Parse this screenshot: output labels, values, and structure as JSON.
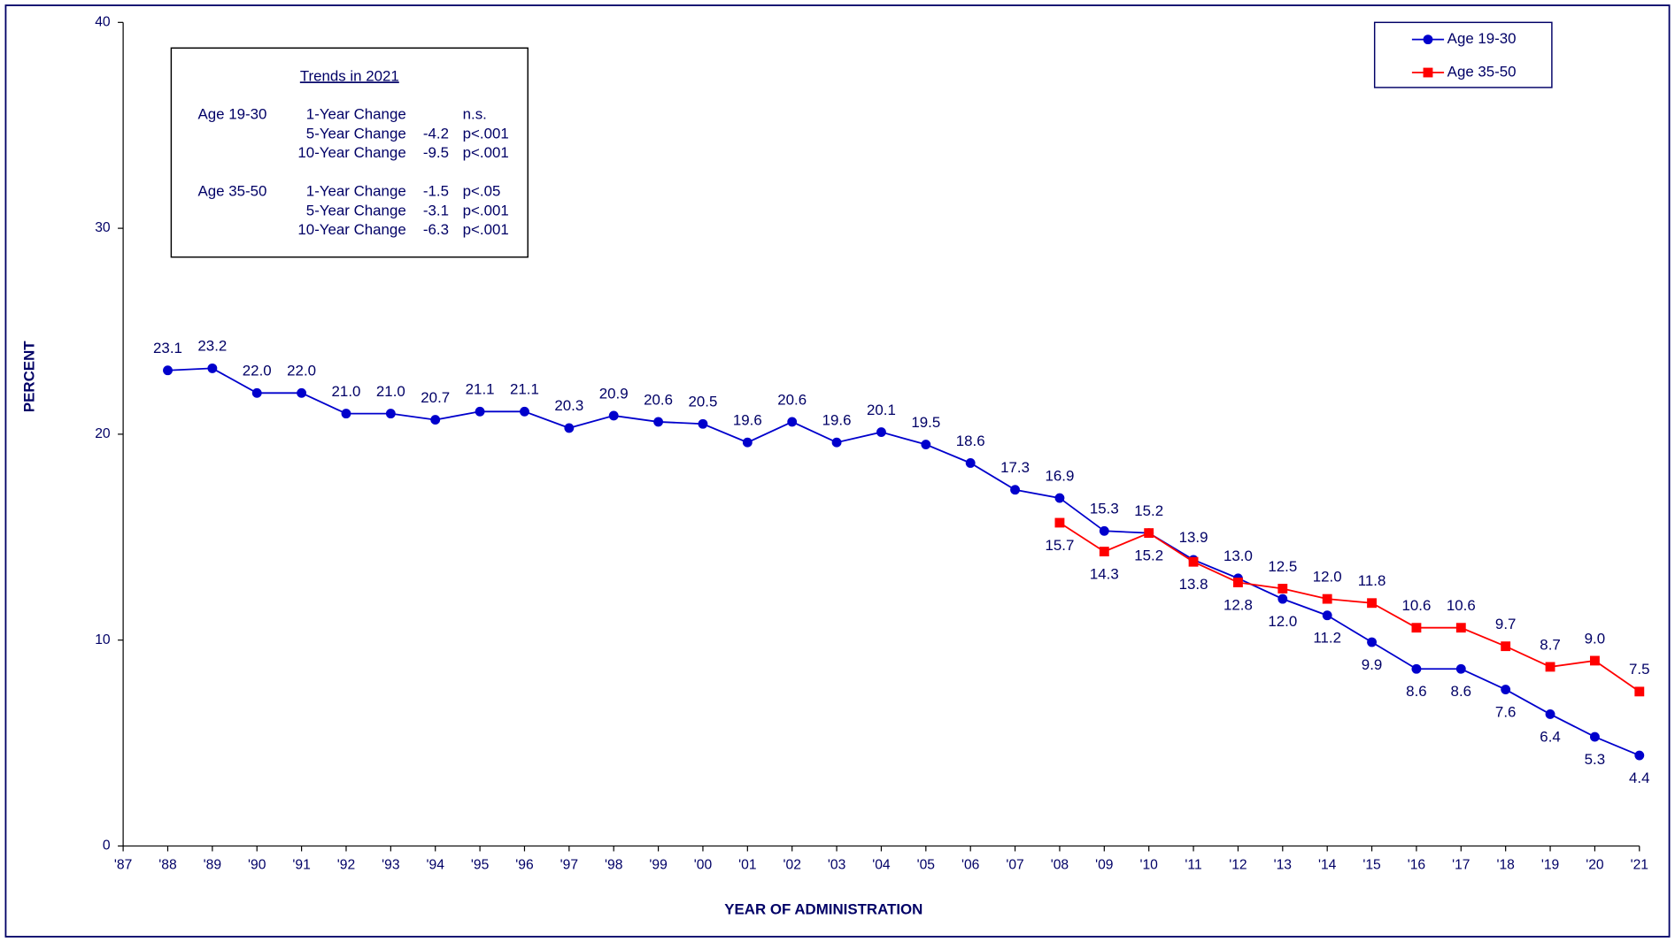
{
  "chart_data": {
    "type": "line",
    "x_label": "YEAR OF ADMINISTRATION",
    "y_label": "PERCENT",
    "categories": [
      "'87",
      "'88",
      "'89",
      "'90",
      "'91",
      "'92",
      "'93",
      "'94",
      "'95",
      "'96",
      "'97",
      "'98",
      "'99",
      "'00",
      "'01",
      "'02",
      "'03",
      "'04",
      "'05",
      "'06",
      "'07",
      "'08",
      "'09",
      "'10",
      "'11",
      "'12",
      "'13",
      "'14",
      "'15",
      "'16",
      "'17",
      "'18",
      "'19",
      "'20",
      "'21"
    ],
    "series": [
      {
        "name": "Age 19-30",
        "color": "#0000cc",
        "marker": "circle",
        "values": [
          null,
          23.1,
          23.2,
          22.0,
          22.0,
          21.0,
          21.0,
          20.7,
          21.1,
          21.1,
          20.3,
          20.9,
          20.6,
          20.5,
          19.6,
          20.6,
          19.6,
          20.1,
          19.5,
          18.6,
          17.3,
          16.9,
          15.3,
          15.2,
          13.9,
          13.0,
          12.0,
          11.2,
          9.9,
          8.6,
          8.6,
          7.6,
          6.4,
          5.3,
          4.4
        ],
        "value_labels": [
          null,
          "23.1",
          "23.2",
          "22.0",
          "22.0",
          "21.0",
          "21.0",
          "20.7",
          "21.1",
          "21.1",
          "20.3",
          "20.9",
          "20.6",
          "20.5",
          "19.6",
          "20.6",
          "19.6",
          "20.1",
          "19.5",
          "18.6",
          "17.3",
          "16.9",
          "15.3",
          "15.2",
          "13.9",
          "13.0",
          "12.0",
          "11.2",
          "9.9",
          "8.6",
          "8.6",
          "7.6",
          "6.4",
          "5.3",
          "4.4"
        ]
      },
      {
        "name": "Age 35-50",
        "color": "#ff0000",
        "marker": "square",
        "values": [
          null,
          null,
          null,
          null,
          null,
          null,
          null,
          null,
          null,
          null,
          null,
          null,
          null,
          null,
          null,
          null,
          null,
          null,
          null,
          null,
          null,
          15.7,
          14.3,
          15.2,
          13.8,
          12.8,
          12.5,
          12.0,
          11.8,
          10.6,
          10.6,
          9.7,
          8.7,
          9.0,
          7.5
        ],
        "value_labels": [
          null,
          null,
          null,
          null,
          null,
          null,
          null,
          null,
          null,
          null,
          null,
          null,
          null,
          null,
          null,
          null,
          null,
          null,
          null,
          null,
          null,
          "15.7",
          "14.3",
          "15.2",
          "13.8",
          "12.8",
          "12.5",
          "12.0",
          "11.8",
          "10.6",
          "10.6",
          "9.7",
          "8.7",
          "9.0",
          "7.5"
        ]
      }
    ],
    "ylim": [
      0,
      40
    ],
    "yticks": [
      0,
      10,
      20,
      30,
      40
    ],
    "grid": false,
    "legend": "upper right",
    "trends": {
      "title": "Trends in 2021",
      "groups": [
        {
          "label": "Age 19-30",
          "rows": [
            {
              "label": "1-Year Change",
              "significance": "n.s."
            },
            {
              "label": "5-Year Change",
              "change": -4.2,
              "significance": "p<.001"
            },
            {
              "label": "10-Year Change",
              "change": -9.5,
              "significance": "p<.001"
            }
          ]
        },
        {
          "label": "Age 35-50",
          "rows": [
            {
              "label": "1-Year Change",
              "change": -1.5,
              "significance": "p<.05"
            },
            {
              "label": "5-Year Change",
              "change": -3.1,
              "significance": "p<.001"
            },
            {
              "label": "10-Year Change",
              "change": -6.3,
              "significance": "p<.001"
            }
          ]
        }
      ]
    }
  }
}
